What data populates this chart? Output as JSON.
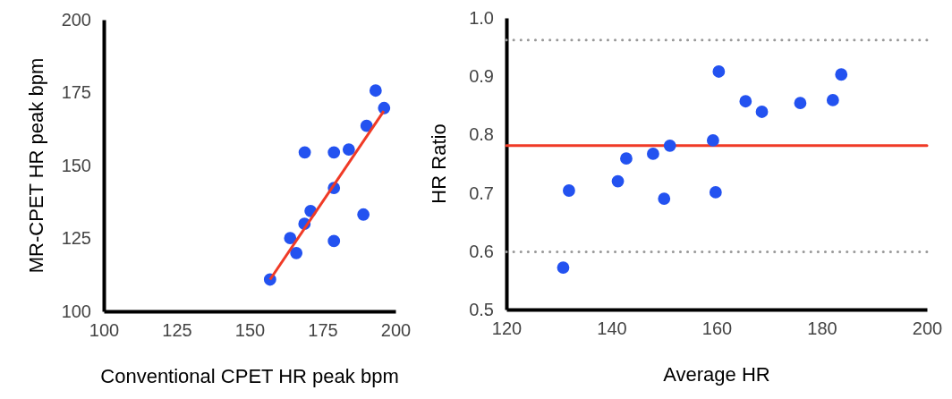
{
  "chart_data": [
    {
      "type": "scatter",
      "xlabel": "Conventional CPET HR peak bpm",
      "ylabel": "MR-CPET HR peak bpm",
      "xlim": [
        100,
        200
      ],
      "ylim": [
        100,
        200
      ],
      "xticks": [
        100,
        125,
        150,
        175,
        200
      ],
      "yticks": [
        100,
        125,
        150,
        175,
        200
      ],
      "grid": false,
      "series": [
        {
          "marker": "circle",
          "color": "#2352f0",
          "x": [
            157.0,
            163.9,
            166.0,
            168.8,
            170.9,
            168.9,
            178.9,
            178.9,
            178.9,
            184.0,
            189.0,
            190.1,
            193.2,
            196.1
          ],
          "values": [
            110.9,
            125.1,
            120.0,
            130.0,
            134.4,
            154.5,
            154.5,
            142.3,
            124.1,
            155.5,
            133.2,
            163.6,
            175.7,
            169.7
          ]
        },
        {
          "type": "line",
          "marker": "none",
          "color": "#f03a26",
          "x": [
            157.0,
            196.0
          ],
          "values": [
            110.9,
            168.7
          ]
        }
      ]
    },
    {
      "type": "scatter",
      "xlabel": "Average HR",
      "ylabel": "HR Ratio",
      "xlim": [
        120,
        200
      ],
      "ylim": [
        0.5,
        1.0
      ],
      "xticks": [
        120,
        140,
        160,
        180,
        200
      ],
      "yticks": [
        {
          "value": 0.5,
          "label": "0.5"
        },
        {
          "value": 0.6,
          "label": "0.6"
        },
        {
          "value": 0.7,
          "label": "0.7"
        },
        {
          "value": 0.8,
          "label": "0.8"
        },
        {
          "value": 0.9,
          "label": "0.9"
        },
        {
          "value": 1.0,
          "label": "1.0"
        }
      ],
      "grid": false,
      "marker": "circle",
      "series": [
        {
          "color": "#2352f0",
          "x": [
            130.8,
            131.9,
            141.2,
            142.8,
            147.9,
            150.0,
            151.1,
            159.3,
            159.8,
            160.4,
            165.5,
            168.6,
            175.9,
            182.1,
            183.7
          ],
          "values": [
            0.572,
            0.704,
            0.72,
            0.759,
            0.767,
            0.69,
            0.781,
            0.79,
            0.701,
            0.908,
            0.857,
            0.839,
            0.854,
            0.859,
            0.903
          ]
        }
      ],
      "ref_lines": [
        {
          "axis": "y",
          "value": 0.962,
          "color": "#999999",
          "line_style": "dotted"
        },
        {
          "axis": "y",
          "value": 0.781,
          "color": "#f03a26",
          "line_style": "solid"
        },
        {
          "axis": "y",
          "value": 0.599,
          "color": "#999999",
          "line_style": "dotted"
        }
      ]
    }
  ]
}
